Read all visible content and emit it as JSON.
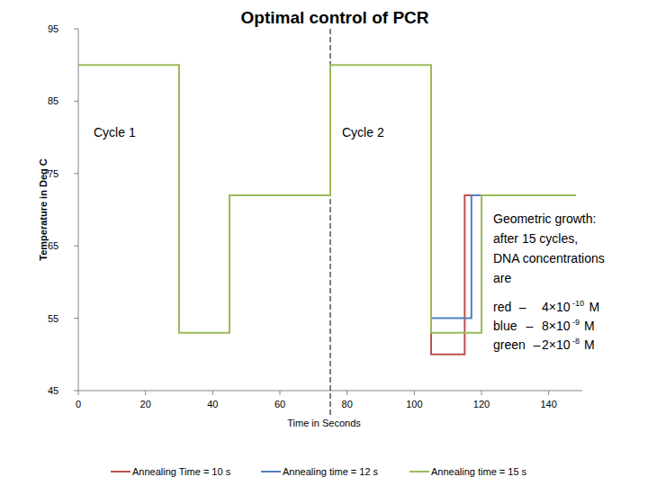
{
  "chart_data": {
    "type": "line",
    "title": "Optimal control of PCR",
    "x_label": "Time in Seconds",
    "y_label": "Temperature in Deg C",
    "xlim": [
      0,
      150
    ],
    "ylim": [
      45,
      95
    ],
    "xticks": [
      0,
      20,
      40,
      60,
      80,
      100,
      120,
      140
    ],
    "yticks": [
      45,
      55,
      65,
      75,
      85,
      95
    ],
    "grid": false,
    "legend": "bottom",
    "cycle_divider": 75,
    "cycle_labels": [
      "Cycle 1",
      "Cycle 2"
    ],
    "annotation": [
      "Geometric growth:",
      "after 15 cycles,",
      "DNA concentrations",
      "are"
    ],
    "concentrations": [
      {
        "name": "red",
        "separator": "–",
        "value": 4e-10,
        "label": "4×10",
        "exponent": "-10",
        "unit": "M"
      },
      {
        "name": "blue",
        "separator": "–",
        "value": 8e-09,
        "label": "8×10",
        "exponent": "-9",
        "unit": "M"
      },
      {
        "name": "green",
        "separator": "–",
        "value": 2e-08,
        "label": "2×10",
        "exponent": "-8",
        "unit": "M"
      }
    ],
    "series": [
      {
        "name": "Annealing Time = 10 s",
        "color": "#c0504d",
        "x": [
          105,
          105,
          115,
          115,
          148
        ],
        "values": [
          90,
          50,
          50,
          72,
          72
        ]
      },
      {
        "name": "Annealing time = 12 s",
        "color": "#4f81bd",
        "x": [
          105,
          105,
          117,
          117,
          148
        ],
        "values": [
          90,
          55,
          55,
          72,
          72
        ]
      },
      {
        "name": "Annealing time = 15 s",
        "color": "#9bbb59",
        "x": [
          0,
          30,
          30,
          45,
          45,
          75,
          75,
          105,
          105,
          120,
          120,
          148
        ],
        "values": [
          90,
          90,
          53,
          53,
          72,
          72,
          90,
          90,
          53,
          53,
          72,
          72
        ]
      }
    ]
  }
}
